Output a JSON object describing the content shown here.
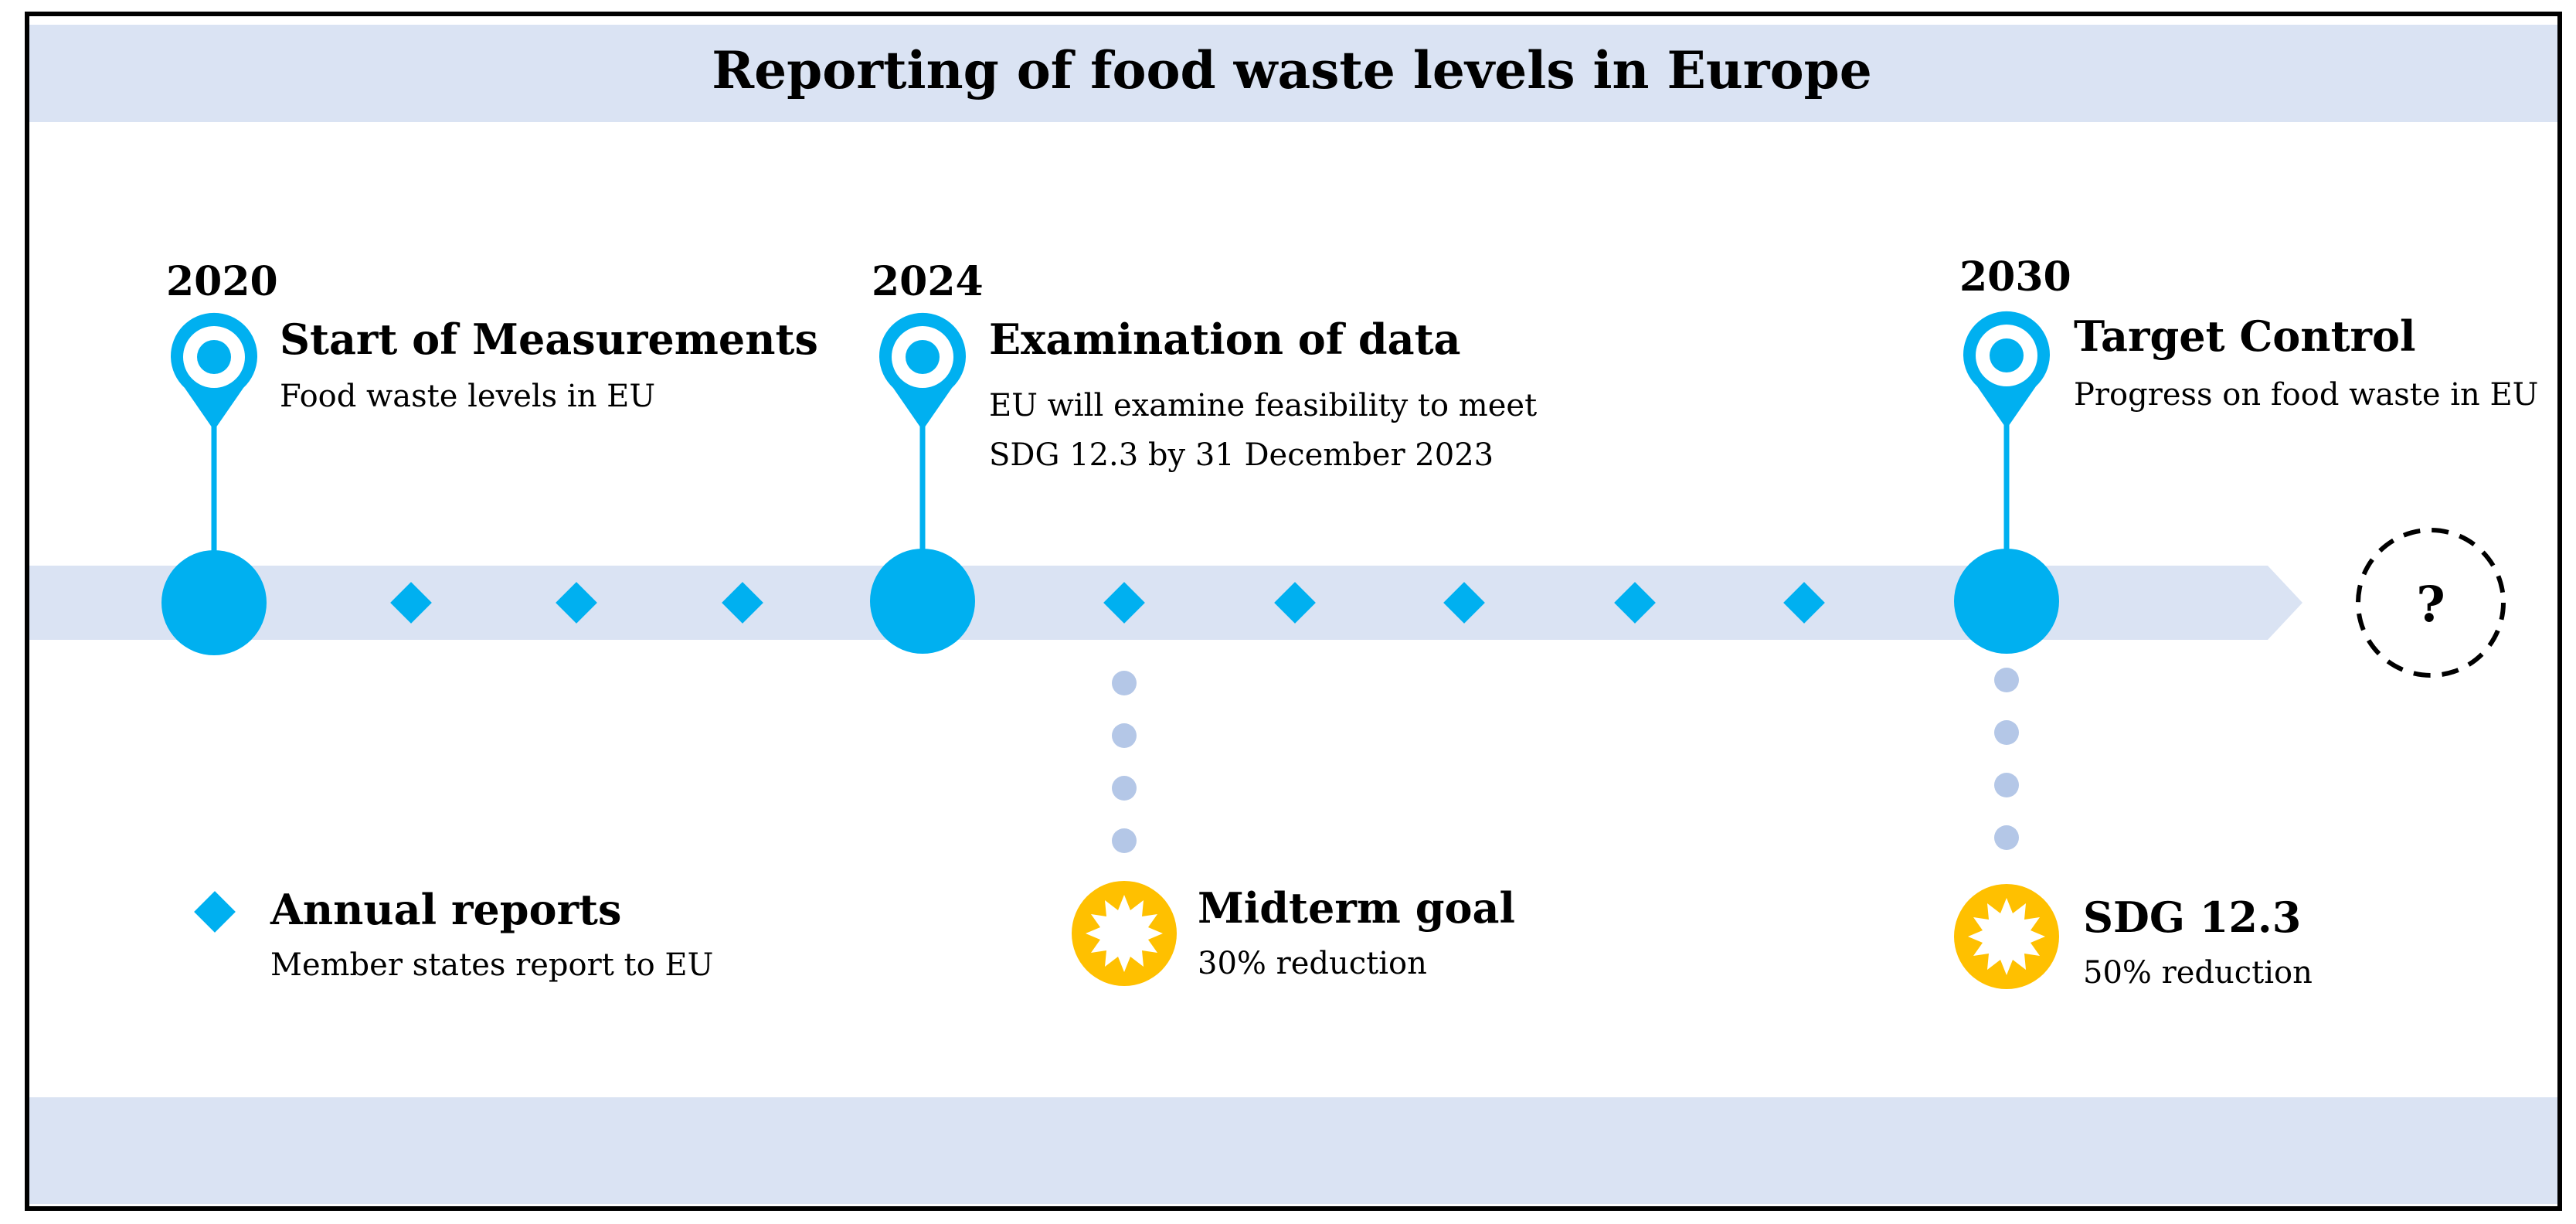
{
  "title": "Reporting of food waste levels in Europe",
  "colors": {
    "band": "#dae3f3",
    "accent": "#00b0f0",
    "dots": "#b4c7e7",
    "gold": "#ffc000",
    "text": "#000000",
    "border": "#000000"
  },
  "milestones": [
    {
      "year": "2020",
      "title": "Start of Measurements",
      "lines": [
        "Food waste levels in EU"
      ],
      "icon": "location-pin-icon"
    },
    {
      "year": "2024",
      "title": "Examination of data",
      "lines": [
        "EU will examine feasibility to meet",
        "SDG 12.3 by 31 December 2023"
      ],
      "icon": "location-pin-icon"
    },
    {
      "year": "2030",
      "title": "Target Control",
      "lines": [
        "Progress on food waste in EU"
      ],
      "icon": "location-pin-icon"
    }
  ],
  "future_marker": {
    "label": "?",
    "icon": "question-circle-icon"
  },
  "legend": {
    "annual": {
      "title": "Annual reports",
      "subtitle": "Member states report to EU",
      "icon": "diamond-icon"
    }
  },
  "goals": [
    {
      "title": "Midterm goal",
      "subtitle": "30% reduction",
      "icon": "sun-badge-icon"
    },
    {
      "title": "SDG 12.3",
      "subtitle": "50% reduction",
      "icon": "sun-badge-icon"
    }
  ]
}
